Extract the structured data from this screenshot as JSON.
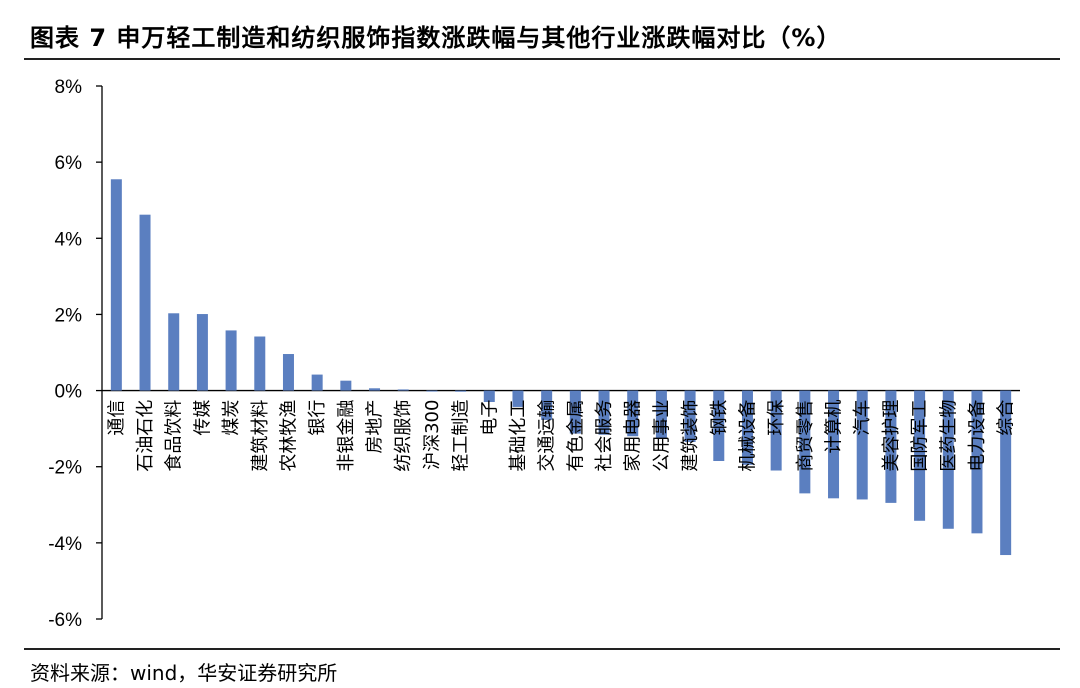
{
  "title": "图表 7 申万轻工制造和纺织服饰指数涨跌幅与其他行业涨跌幅对比（%）",
  "source": "资料来源：wind，华安证券研究所",
  "colors": {
    "bar": "#5B7FC0",
    "axis": "#000000"
  },
  "chart_data": {
    "type": "bar",
    "title": "图表 7 申万轻工制造和纺织服饰指数涨跌幅与其他行业涨跌幅对比（%）",
    "xlabel": "",
    "ylabel": "",
    "ylim": [
      -6,
      8
    ],
    "yticks": [
      "8%",
      "6%",
      "4%",
      "2%",
      "0%",
      "-2%",
      "-4%",
      "-6%"
    ],
    "grid": false,
    "legend": "none",
    "categories": [
      "通信",
      "石油石化",
      "食品饮料",
      "传媒",
      "煤炭",
      "建筑材料",
      "农林牧渔",
      "银行",
      "非银金融",
      "房地产",
      "纺织服饰",
      "沪深300",
      "轻工制造",
      "电子",
      "基础化工",
      "交通运输",
      "有色金属",
      "社会服务",
      "家用电器",
      "公用事业",
      "建筑装饰",
      "钢铁",
      "机械设备",
      "环保",
      "商贸零售",
      "计算机",
      "汽车",
      "美容护理",
      "国防军工",
      "医药生物",
      "电力设备",
      "综合"
    ],
    "values": [
      5.55,
      4.62,
      2.03,
      2.01,
      1.58,
      1.42,
      0.96,
      0.42,
      0.26,
      0.06,
      0.03,
      -0.02,
      -0.03,
      -0.3,
      -0.43,
      -0.77,
      -1.13,
      -1.16,
      -1.2,
      -1.26,
      -1.35,
      -1.85,
      -1.95,
      -2.1,
      -2.7,
      -2.83,
      -2.86,
      -2.95,
      -3.42,
      -3.63,
      -3.75,
      -4.32
    ]
  }
}
